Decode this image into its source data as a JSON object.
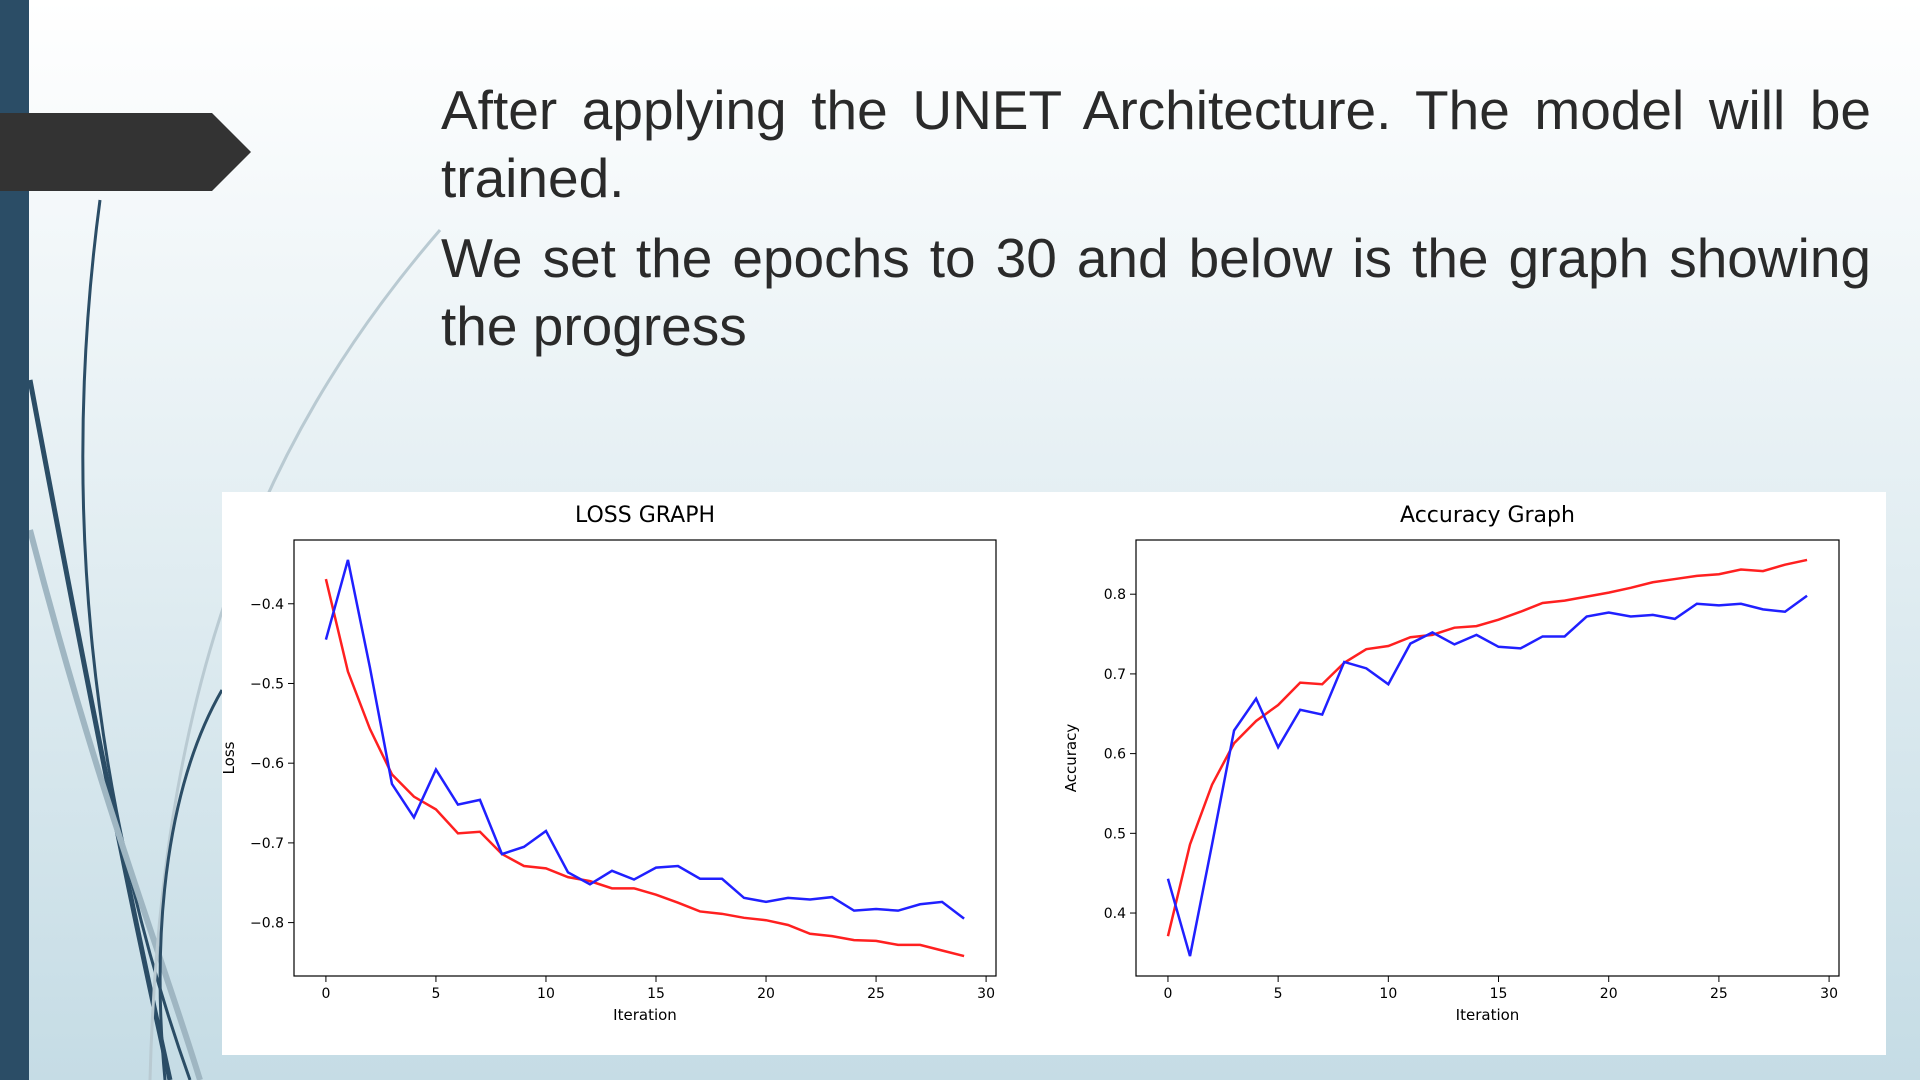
{
  "slide": {
    "paragraphs": [
      "After applying the UNET Architecture. The model will be trained.",
      "We set the epochs to 30 and below is the graph showing the progress"
    ]
  },
  "chart_data": [
    {
      "type": "line",
      "title": "LOSS GRAPH",
      "x_label": "Iteration",
      "y_label": "Loss",
      "x": [
        0,
        1,
        2,
        3,
        4,
        5,
        6,
        7,
        8,
        9,
        10,
        11,
        12,
        13,
        14,
        15,
        16,
        17,
        18,
        19,
        20,
        21,
        22,
        23,
        24,
        25,
        26,
        27,
        28,
        29
      ],
      "series": [
        {
          "color": "#ff2020",
          "values": [
            -0.369,
            -0.485,
            -0.557,
            -0.614,
            -0.642,
            -0.658,
            -0.688,
            -0.686,
            -0.714,
            -0.729,
            -0.732,
            -0.743,
            -0.748,
            -0.757,
            -0.757,
            -0.765,
            -0.775,
            -0.786,
            -0.789,
            -0.794,
            -0.797,
            -0.803,
            -0.814,
            -0.817,
            -0.822,
            -0.823,
            -0.828,
            -0.828,
            -0.835,
            -0.842
          ]
        },
        {
          "color": "#2020ff",
          "values": [
            -0.445,
            -0.345,
            -0.48,
            -0.626,
            -0.668,
            -0.608,
            -0.652,
            -0.646,
            -0.714,
            -0.705,
            -0.685,
            -0.737,
            -0.752,
            -0.735,
            -0.746,
            -0.731,
            -0.729,
            -0.745,
            -0.745,
            -0.769,
            -0.774,
            -0.769,
            -0.771,
            -0.768,
            -0.785,
            -0.783,
            -0.785,
            -0.777,
            -0.774,
            -0.795
          ]
        }
      ],
      "xlim": [
        -1.45,
        30.45
      ],
      "xticks": [
        0,
        5,
        10,
        15,
        20,
        25,
        30
      ],
      "ylim": [
        -0.867,
        -0.32
      ],
      "yticks": [
        {
          "value": -0.8,
          "label": "−0.8"
        },
        {
          "value": -0.7,
          "label": "−0.7"
        },
        {
          "value": -0.6,
          "label": "−0.6"
        },
        {
          "value": -0.5,
          "label": "−0.5"
        },
        {
          "value": -0.4,
          "label": "−0.4"
        }
      ],
      "grid": false
    },
    {
      "type": "line",
      "title": "Accuracy Graph",
      "x_label": "Iteration",
      "y_label": "Accuracy",
      "x": [
        0,
        1,
        2,
        3,
        4,
        5,
        6,
        7,
        8,
        9,
        10,
        11,
        12,
        13,
        14,
        15,
        16,
        17,
        18,
        19,
        20,
        21,
        22,
        23,
        24,
        25,
        26,
        27,
        28,
        29
      ],
      "series": [
        {
          "color": "#ff2020",
          "values": [
            0.371,
            0.486,
            0.561,
            0.613,
            0.641,
            0.661,
            0.689,
            0.687,
            0.714,
            0.731,
            0.735,
            0.746,
            0.749,
            0.758,
            0.76,
            0.768,
            0.778,
            0.789,
            0.792,
            0.797,
            0.802,
            0.808,
            0.815,
            0.819,
            0.823,
            0.825,
            0.831,
            0.829,
            0.837,
            0.843
          ]
        },
        {
          "color": "#2020ff",
          "values": [
            0.443,
            0.346,
            0.486,
            0.629,
            0.669,
            0.608,
            0.655,
            0.649,
            0.715,
            0.707,
            0.687,
            0.738,
            0.752,
            0.737,
            0.749,
            0.734,
            0.732,
            0.747,
            0.747,
            0.772,
            0.777,
            0.772,
            0.774,
            0.769,
            0.788,
            0.786,
            0.788,
            0.781,
            0.778,
            0.798
          ]
        }
      ],
      "xlim": [
        -1.45,
        30.45
      ],
      "xticks": [
        0,
        5,
        10,
        15,
        20,
        25,
        30
      ],
      "ylim": [
        0.321,
        0.868
      ],
      "yticks": [
        0.4,
        0.5,
        0.6,
        0.7,
        0.8
      ],
      "grid": false
    }
  ]
}
